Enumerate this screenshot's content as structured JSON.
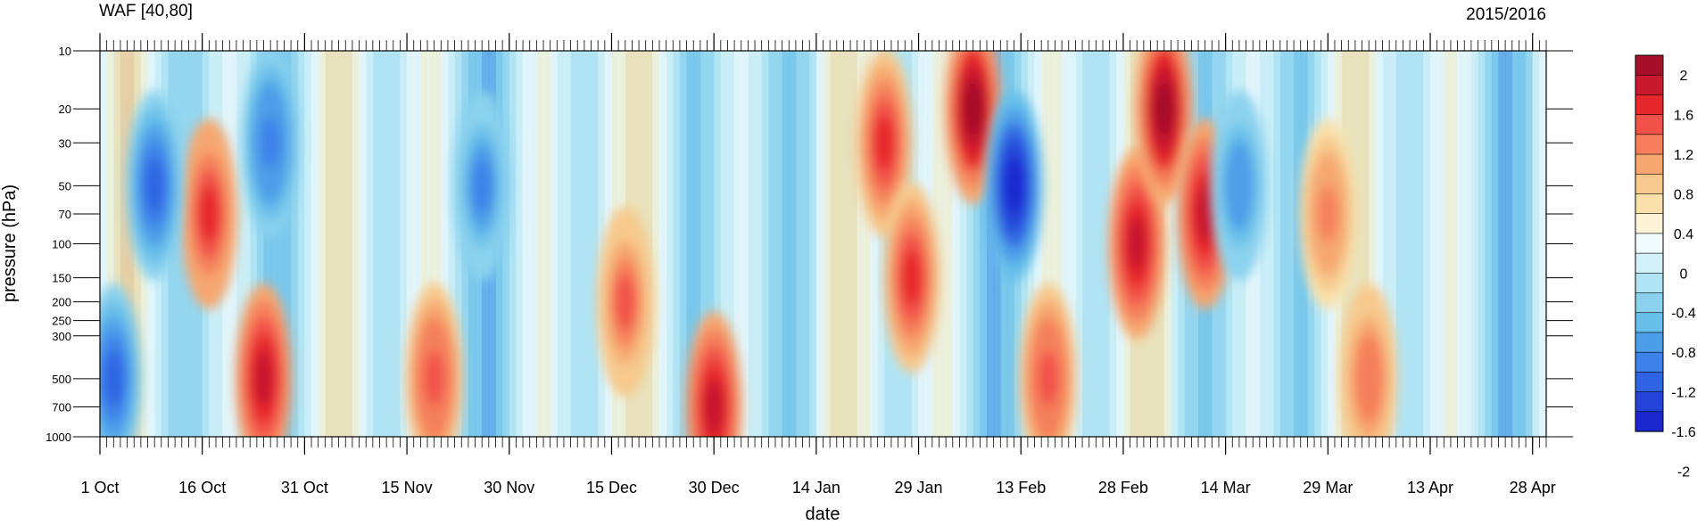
{
  "chart_data": {
    "type": "heatmap",
    "title": "WAF [40,80]",
    "season": "2015/2016",
    "xlabel": "date",
    "ylabel": "pressure (hPa)",
    "y_scale": "log",
    "y_reversed": true,
    "ylim": [
      1000,
      10
    ],
    "xlim": [
      "2015-10-01",
      "2016-04-30"
    ],
    "x_tick_labels": [
      "1 Oct",
      "16 Oct",
      "31 Oct",
      "15 Nov",
      "30 Nov",
      "15 Dec",
      "30 Dec",
      "14 Jan",
      "29 Jan",
      "13 Feb",
      "28 Feb",
      "14 Mar",
      "29 Mar",
      "13 Apr",
      "28 Apr"
    ],
    "y_ticks": [
      10,
      20,
      30,
      50,
      70,
      100,
      150,
      200,
      250,
      300,
      500,
      700,
      1000
    ],
    "colorbar": {
      "labels": [
        "2",
        "1.6",
        "1.2",
        "0.8",
        "0.4",
        "0",
        "-0.4",
        "-0.8",
        "-1.2",
        "-1.6",
        "-2"
      ],
      "colors": [
        "#a50f2a",
        "#c8192e",
        "#e6282c",
        "#f2514a",
        "#f57f5b",
        "#f6a770",
        "#f7c98d",
        "#fae1ab",
        "#fdf4d7",
        "#f0fbfd",
        "#d3f1f8",
        "#b0e4f4",
        "#8bd2ee",
        "#68bfe9",
        "#4d9ee8",
        "#3c82e9",
        "#2e63e3",
        "#2444d9",
        "#1c27d0"
      ]
    },
    "anomaly_events": [
      {
        "date": "2015-10-17",
        "peak_level": 70,
        "value": 1.8
      },
      {
        "date": "2015-10-09",
        "peak_level": 50,
        "value": -1.6
      },
      {
        "date": "2015-10-26",
        "peak_level": 30,
        "value": -1.5
      },
      {
        "date": "2015-11-26",
        "peak_level": 50,
        "value": -1.4
      },
      {
        "date": "2015-12-17",
        "peak_level": 200,
        "value": 1.4
      },
      {
        "date": "2015-12-30",
        "peak_level": 700,
        "value": 1.9
      },
      {
        "date": "2016-01-24",
        "peak_level": 30,
        "value": 1.7
      },
      {
        "date": "2016-01-28",
        "peak_level": 150,
        "value": 1.6
      },
      {
        "date": "2016-02-06",
        "peak_level": 20,
        "value": 2.2
      },
      {
        "date": "2016-02-12",
        "peak_level": 50,
        "value": -2.2
      },
      {
        "date": "2016-02-17",
        "peak_level": 500,
        "value": 1.5
      },
      {
        "date": "2016-03-01",
        "peak_level": 100,
        "value": 1.9
      },
      {
        "date": "2016-03-05",
        "peak_level": 20,
        "value": 2.2
      },
      {
        "date": "2016-03-11",
        "peak_level": 70,
        "value": 2.0
      },
      {
        "date": "2016-03-16",
        "peak_level": 50,
        "value": -1.3
      },
      {
        "date": "2016-03-29",
        "peak_level": 70,
        "value": 1.2
      },
      {
        "date": "2016-04-04",
        "peak_level": 500,
        "value": 1.3
      },
      {
        "date": "2015-10-03",
        "peak_level": 500,
        "value": -1.6
      },
      {
        "date": "2015-10-25",
        "peak_level": 500,
        "value": 1.9
      },
      {
        "date": "2015-11-19",
        "peak_level": 500,
        "value": 1.5
      }
    ]
  }
}
